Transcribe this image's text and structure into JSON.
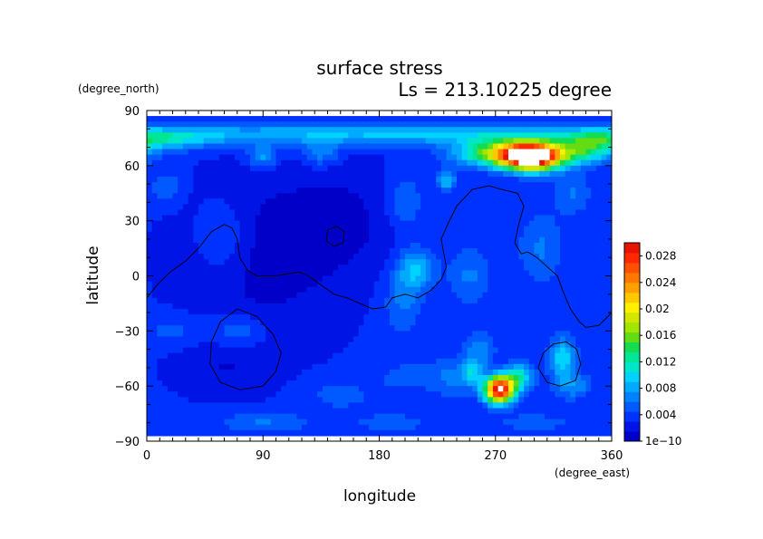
{
  "chart_data": {
    "type": "heatmap",
    "title": "surface stress",
    "subtitle": "Ls = 213.10225 degree",
    "xlabel": "longitude",
    "ylabel": "latitude",
    "xunit": "(degree_east)",
    "yunit": "(degree_north)",
    "xlim": [
      0,
      360
    ],
    "ylim": [
      -90,
      90
    ],
    "xticks": [
      {
        "v": 0,
        "label": "0"
      },
      {
        "v": 90,
        "label": "90"
      },
      {
        "v": 180,
        "label": "180"
      },
      {
        "v": 270,
        "label": "270"
      },
      {
        "v": 360,
        "label": "360"
      }
    ],
    "yticks": [
      {
        "v": 90,
        "label": "90"
      },
      {
        "v": 60,
        "label": "60"
      },
      {
        "v": 30,
        "label": "30"
      },
      {
        "v": 0,
        "label": "0"
      },
      {
        "v": -30,
        "label": "−30"
      },
      {
        "v": -60,
        "label": "−60"
      },
      {
        "v": -90,
        "label": "−90"
      }
    ],
    "data_lat_range": [
      -87,
      87
    ],
    "colorbar": {
      "range": [
        0,
        0.03
      ],
      "labels": [
        {
          "v": 0,
          "label": "1e−10"
        },
        {
          "v": 0.004,
          "label": "0.004"
        },
        {
          "v": 0.008,
          "label": "0.008"
        },
        {
          "v": 0.012,
          "label": "0.012"
        },
        {
          "v": 0.016,
          "label": "0.016"
        },
        {
          "v": 0.02,
          "label": "0.02"
        },
        {
          "v": 0.024,
          "label": "0.024"
        },
        {
          "v": 0.028,
          "label": "0.028"
        }
      ],
      "colors": [
        "#0000c8",
        "#0014e6",
        "#0032ff",
        "#005aff",
        "#0082ff",
        "#00aaff",
        "#00d2ff",
        "#00e6c8",
        "#00e696",
        "#14dc50",
        "#64dc14",
        "#a0e600",
        "#d2e600",
        "#fff000",
        "#ffc800",
        "#ffa000",
        "#ff7800",
        "#ff5000",
        "#ff2800",
        "#e61400"
      ]
    },
    "field": {
      "base": 0.0032,
      "features": [
        {
          "lon": 180,
          "lat": 77,
          "slon": 200,
          "slat": 4,
          "amp": 0.006
        },
        {
          "lon": 20,
          "lat": 74,
          "slon": 25,
          "slat": 4,
          "amp": 0.004
        },
        {
          "lon": 350,
          "lat": 74,
          "slon": 20,
          "slat": 4,
          "amp": 0.004
        },
        {
          "lon": 298,
          "lat": 65,
          "slon": 16,
          "slat": 5,
          "amp": 0.034
        },
        {
          "lon": 270,
          "lat": 67,
          "slon": 22,
          "slat": 5,
          "amp": 0.012
        },
        {
          "lon": 338,
          "lat": 68,
          "slon": 16,
          "slat": 5,
          "amp": 0.009
        },
        {
          "lon": 90,
          "lat": 65,
          "slon": 8,
          "slat": 4,
          "amp": 0.005
        },
        {
          "lon": 135,
          "lat": 67,
          "slon": 10,
          "slat": 5,
          "amp": 0.004
        },
        {
          "lon": 232,
          "lat": 52,
          "slon": 5,
          "slat": 4,
          "amp": 0.006
        },
        {
          "lon": 200,
          "lat": 40,
          "slon": 10,
          "slat": 10,
          "amp": 0.003
        },
        {
          "lon": 208,
          "lat": 3,
          "slon": 10,
          "slat": 8,
          "amp": 0.006
        },
        {
          "lon": 198,
          "lat": -15,
          "slon": 10,
          "slat": 12,
          "amp": 0.003
        },
        {
          "lon": 250,
          "lat": 0,
          "slon": 12,
          "slat": 12,
          "amp": 0.003
        },
        {
          "lon": 305,
          "lat": 15,
          "slon": 12,
          "slat": 14,
          "amp": 0.003
        },
        {
          "lon": 330,
          "lat": 45,
          "slon": 10,
          "slat": 8,
          "amp": 0.003
        },
        {
          "lon": 60,
          "lat": 20,
          "slon": 15,
          "slat": 15,
          "amp": 0.0025
        },
        {
          "lon": 15,
          "lat": 48,
          "slon": 8,
          "slat": 6,
          "amp": 0.003
        },
        {
          "lon": 273,
          "lat": -62,
          "slon": 8,
          "slat": 5,
          "amp": 0.028
        },
        {
          "lon": 288,
          "lat": -55,
          "slon": 8,
          "slat": 5,
          "amp": 0.008
        },
        {
          "lon": 252,
          "lat": -53,
          "slon": 6,
          "slat": 5,
          "amp": 0.006
        },
        {
          "lon": 258,
          "lat": -40,
          "slon": 8,
          "slat": 6,
          "amp": 0.004
        },
        {
          "lon": 235,
          "lat": -55,
          "slon": 12,
          "slat": 8,
          "amp": 0.003
        },
        {
          "lon": 322,
          "lat": -45,
          "slon": 7,
          "slat": 8,
          "amp": 0.007
        },
        {
          "lon": 330,
          "lat": -60,
          "slon": 10,
          "slat": 5,
          "amp": 0.004
        },
        {
          "lon": 70,
          "lat": -30,
          "slon": 15,
          "slat": 6,
          "amp": 0.003
        },
        {
          "lon": 20,
          "lat": -30,
          "slon": 15,
          "slat": 6,
          "amp": 0.002
        },
        {
          "lon": 150,
          "lat": -65,
          "slon": 20,
          "slat": 6,
          "amp": 0.002
        },
        {
          "lon": 90,
          "lat": -80,
          "slon": 25,
          "slat": 4,
          "amp": 0.003
        },
        {
          "lon": 190,
          "lat": -80,
          "slon": 25,
          "slat": 4,
          "amp": 0.002
        },
        {
          "lon": 300,
          "lat": -80,
          "slon": 25,
          "slat": 4,
          "amp": 0.002
        },
        {
          "lon": 200,
          "lat": -55,
          "slon": 15,
          "slat": 6,
          "amp": 0.002
        },
        {
          "lon": 90,
          "lat": 10,
          "slon": 40,
          "slat": 30,
          "amp": -0.0025
        },
        {
          "lon": 150,
          "lat": 30,
          "slon": 30,
          "slat": 20,
          "amp": -0.002
        },
        {
          "lon": 60,
          "lat": -50,
          "slon": 25,
          "slat": 10,
          "amp": -0.0015
        }
      ]
    },
    "contours": [
      {
        "points": [
          [
            0,
            -12
          ],
          [
            8,
            -5
          ],
          [
            18,
            2
          ],
          [
            30,
            8
          ],
          [
            40,
            15
          ],
          [
            50,
            24
          ],
          [
            60,
            28
          ],
          [
            66,
            26
          ],
          [
            70,
            20
          ],
          [
            72,
            10
          ],
          [
            78,
            3
          ],
          [
            85,
            0
          ],
          [
            100,
            0
          ],
          [
            108,
            1
          ],
          [
            118,
            2
          ],
          [
            125,
            0
          ],
          [
            135,
            -5
          ],
          [
            145,
            -10
          ],
          [
            155,
            -12
          ],
          [
            165,
            -15
          ],
          [
            175,
            -18
          ],
          [
            185,
            -17
          ],
          [
            190,
            -12
          ],
          [
            200,
            -10
          ],
          [
            210,
            -12
          ],
          [
            220,
            -8
          ],
          [
            228,
            -2
          ],
          [
            232,
            5
          ],
          [
            230,
            12
          ],
          [
            228,
            20
          ],
          [
            233,
            28
          ],
          [
            240,
            38
          ],
          [
            252,
            47
          ],
          [
            265,
            49
          ],
          [
            275,
            47
          ],
          [
            287,
            45
          ],
          [
            292,
            38
          ],
          [
            288,
            28
          ],
          [
            285,
            18
          ],
          [
            290,
            12
          ],
          [
            295,
            13
          ],
          [
            302,
            10
          ],
          [
            310,
            5
          ],
          [
            318,
            0
          ],
          [
            322,
            -8
          ],
          [
            328,
            -18
          ],
          [
            335,
            -25
          ],
          [
            340,
            -28
          ],
          [
            350,
            -27
          ],
          [
            360,
            -20
          ]
        ],
        "closed": false
      },
      {
        "points": [
          [
            140,
            25
          ],
          [
            147,
            27
          ],
          [
            153,
            24
          ],
          [
            152,
            18
          ],
          [
            145,
            16
          ],
          [
            139,
            19
          ]
        ],
        "closed": true
      },
      {
        "points": [
          [
            70,
            -18
          ],
          [
            85,
            -22
          ],
          [
            98,
            -32
          ],
          [
            104,
            -42
          ],
          [
            100,
            -52
          ],
          [
            90,
            -60
          ],
          [
            72,
            -62
          ],
          [
            57,
            -58
          ],
          [
            49,
            -48
          ],
          [
            50,
            -36
          ],
          [
            57,
            -25
          ]
        ],
        "closed": true
      },
      {
        "points": [
          [
            325,
            -36
          ],
          [
            333,
            -40
          ],
          [
            336,
            -48
          ],
          [
            332,
            -57
          ],
          [
            320,
            -60
          ],
          [
            310,
            -58
          ],
          [
            303,
            -50
          ],
          [
            307,
            -42
          ],
          [
            315,
            -37
          ]
        ],
        "closed": true
      }
    ]
  }
}
